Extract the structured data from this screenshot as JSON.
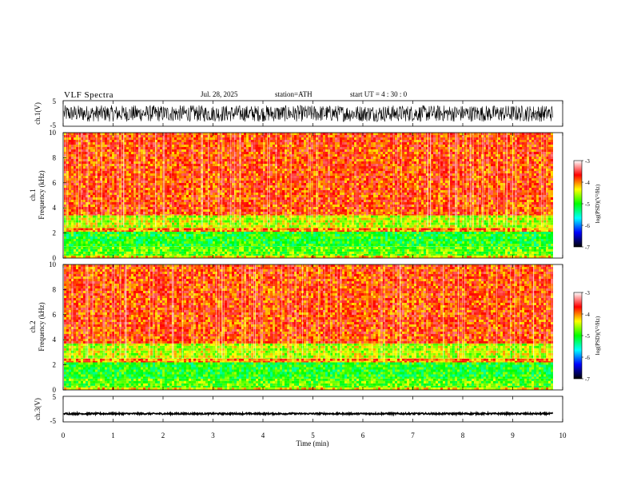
{
  "header": {
    "title": "VLF  Spectra",
    "date": "Jul.  28,  2025",
    "station": "station=ATH",
    "start_ut": "start  UT  =   4  : 30 : 0"
  },
  "chart_data": [
    {
      "panel": "ch1-waveform",
      "type": "line",
      "ylabel": "ch.1(V)",
      "ylim": [
        -5,
        5
      ],
      "yticks": [
        "5",
        "-5"
      ],
      "xlim": [
        0,
        10
      ],
      "data_end_min": 9.8,
      "series": [
        {
          "amplitude_envelope_v": 3.2,
          "color": "#000000"
        }
      ]
    },
    {
      "panel": "ch1-spectrogram",
      "type": "heatmap",
      "ylabel": "ch.1\nFrequency  (kHz)",
      "ylim": [
        0,
        10
      ],
      "yticks": [
        "0",
        "2",
        "4",
        "6",
        "8",
        "10"
      ],
      "xlim": [
        0,
        10
      ],
      "data_end_min": 9.8,
      "bands_khz": [
        {
          "from": 0.0,
          "to": 0.2,
          "level": -4.3
        },
        {
          "from": 0.2,
          "to": 0.9,
          "level": -4.8
        },
        {
          "from": 0.9,
          "to": 2.1,
          "level": -5.0
        },
        {
          "from": 2.1,
          "to": 2.4,
          "level": -4.0
        },
        {
          "from": 2.4,
          "to": 3.4,
          "level": -4.5
        },
        {
          "from": 3.4,
          "to": 10.0,
          "level": -3.8
        }
      ]
    },
    {
      "panel": "ch2-spectrogram",
      "type": "heatmap",
      "ylabel": "ch.2\nFrequency  (kHz)",
      "ylim": [
        0,
        10
      ],
      "yticks": [
        "0",
        "2",
        "4",
        "6",
        "8",
        "10"
      ],
      "xlim": [
        0,
        10
      ],
      "data_end_min": 9.8,
      "bands_khz": [
        {
          "from": 0.0,
          "to": 0.2,
          "level": -4.3
        },
        {
          "from": 0.2,
          "to": 0.9,
          "level": -4.8
        },
        {
          "from": 0.9,
          "to": 2.2,
          "level": -5.0
        },
        {
          "from": 2.2,
          "to": 2.5,
          "level": -4.0
        },
        {
          "from": 2.5,
          "to": 3.7,
          "level": -4.5
        },
        {
          "from": 3.7,
          "to": 10.0,
          "level": -3.8
        }
      ]
    },
    {
      "panel": "ch3-waveform",
      "type": "line",
      "ylabel": "ch.3(V)",
      "ylim": [
        -5,
        5
      ],
      "yticks": [
        "5",
        "-5"
      ],
      "xlim": [
        0,
        10
      ],
      "xticks": [
        "0",
        "1",
        "2",
        "3",
        "4",
        "5",
        "6",
        "7",
        "8",
        "9",
        "10"
      ],
      "xlabel": "Time  (min)",
      "data_end_min": 9.8,
      "series": [
        {
          "offset_v": -1.8,
          "amplitude_envelope_v": 0.3,
          "color": "#000000"
        }
      ]
    }
  ],
  "colorbar": {
    "label": "log(PSD)(V²/Hz)",
    "range": [
      -7,
      -3
    ],
    "ticks": [
      "-3",
      "-4",
      "-5",
      "-6",
      "-7"
    ],
    "colors": [
      "#000000",
      "#0000ff",
      "#00ffff",
      "#00ff00",
      "#ffff00",
      "#ff0000",
      "#ffffff"
    ]
  }
}
